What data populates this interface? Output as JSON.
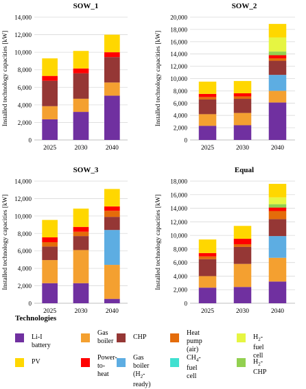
{
  "chart_data": [
    {
      "type": "bar",
      "stacked": true,
      "title": "SOW_1",
      "ylabel": "Installed technology capacities [kW]",
      "ylim": [
        0,
        14000
      ],
      "yticks": [
        "0",
        "2,000",
        "4,000",
        "6,000",
        "8,000",
        "10,000",
        "12,000",
        "14,000"
      ],
      "ytick_values": [
        0,
        2000,
        4000,
        6000,
        8000,
        10000,
        12000,
        14000
      ],
      "categories": [
        "2025",
        "2030",
        "2040"
      ],
      "series": [
        {
          "name": "Li-I battery",
          "color": "#7030A0",
          "values": [
            2350,
            3200,
            5050
          ]
        },
        {
          "name": "Gas boiler",
          "color": "#F4A030",
          "values": [
            1500,
            1500,
            1500
          ]
        },
        {
          "name": "CHP",
          "color": "#953735",
          "values": [
            2900,
            2900,
            2900
          ]
        },
        {
          "name": "Heat pump (air)",
          "color": "#E46C0A",
          "values": [
            0,
            0,
            0
          ]
        },
        {
          "name": "Power-to-heat",
          "color": "#FF0000",
          "values": [
            550,
            550,
            550
          ]
        },
        {
          "name": "PV",
          "color": "#FFD700",
          "values": [
            2000,
            2000,
            2000
          ]
        }
      ]
    },
    {
      "type": "bar",
      "stacked": true,
      "title": "SOW_2",
      "ylabel": "Installed technology capacities [kW]",
      "ylim": [
        0,
        20000
      ],
      "yticks": [
        "0",
        "2,000",
        "4,000",
        "6,000",
        "8,000",
        "10,000",
        "12,000",
        "14,000",
        "16,000",
        "18,000",
        "20,000"
      ],
      "ytick_values": [
        0,
        2000,
        4000,
        6000,
        8000,
        10000,
        12000,
        14000,
        16000,
        18000,
        20000
      ],
      "categories": [
        "2025",
        "2030",
        "2040"
      ],
      "series": [
        {
          "name": "Li-I battery",
          "color": "#7030A0",
          "values": [
            2300,
            2400,
            6100
          ]
        },
        {
          "name": "Gas boiler",
          "color": "#F4A030",
          "values": [
            1900,
            2000,
            1900
          ]
        },
        {
          "name": "Gas boiler (H2-ready)",
          "color": "#5DADE2",
          "values": [
            0,
            0,
            2600
          ]
        },
        {
          "name": "CHP",
          "color": "#953735",
          "values": [
            2400,
            2300,
            2300
          ]
        },
        {
          "name": "Heat pump (air)",
          "color": "#E46C0A",
          "values": [
            400,
            400,
            400
          ]
        },
        {
          "name": "Power-to-heat",
          "color": "#FF0000",
          "values": [
            500,
            500,
            500
          ]
        },
        {
          "name": "H2-CHP",
          "color": "#92D050",
          "values": [
            0,
            0,
            600
          ]
        },
        {
          "name": "H2-fuel cell",
          "color": "#E6F542",
          "values": [
            0,
            0,
            2300
          ]
        },
        {
          "name": "PV",
          "color": "#FFD700",
          "values": [
            2000,
            2000,
            2200
          ]
        }
      ]
    },
    {
      "type": "bar",
      "stacked": true,
      "title": "SOW_3",
      "ylabel": "Installed technology capacities [kW]",
      "ylim": [
        0,
        14000
      ],
      "yticks": [
        "0",
        "2,000",
        "4,000",
        "6,000",
        "8,000",
        "10,000",
        "12,000",
        "14,000"
      ],
      "ytick_values": [
        0,
        2000,
        4000,
        6000,
        8000,
        10000,
        12000,
        14000
      ],
      "categories": [
        "2025",
        "2030",
        "2040"
      ],
      "series": [
        {
          "name": "Li-I battery",
          "color": "#7030A0",
          "values": [
            2300,
            2300,
            500
          ]
        },
        {
          "name": "Gas boiler",
          "color": "#F4A030",
          "values": [
            2650,
            3800,
            3900
          ]
        },
        {
          "name": "Gas boiler (H2-ready)",
          "color": "#5DADE2",
          "values": [
            0,
            0,
            4000
          ]
        },
        {
          "name": "CHP",
          "color": "#953735",
          "values": [
            1550,
            1600,
            1500
          ]
        },
        {
          "name": "Heat pump (air)",
          "color": "#E46C0A",
          "values": [
            500,
            500,
            700
          ]
        },
        {
          "name": "Power-to-heat",
          "color": "#FF0000",
          "values": [
            550,
            550,
            500
          ]
        },
        {
          "name": "PV",
          "color": "#FFD700",
          "values": [
            2000,
            2100,
            2000
          ]
        }
      ]
    },
    {
      "type": "bar",
      "stacked": true,
      "title": "Equal",
      "ylabel": "Installed technology capacities [kW]",
      "ylim": [
        0,
        18000
      ],
      "yticks": [
        "0",
        "2,000",
        "4,000",
        "6,000",
        "8,000",
        "10,000",
        "12,000",
        "14,000",
        "16,000",
        "18,000"
      ],
      "ytick_values": [
        0,
        2000,
        4000,
        6000,
        8000,
        10000,
        12000,
        14000,
        16000,
        18000
      ],
      "categories": [
        "2025",
        "2030",
        "2040"
      ],
      "series": [
        {
          "name": "Li-I battery",
          "color": "#7030A0",
          "values": [
            2300,
            2400,
            3200
          ]
        },
        {
          "name": "Gas boiler",
          "color": "#F4A030",
          "values": [
            1700,
            3400,
            3500
          ]
        },
        {
          "name": "Gas boiler (H2-ready)",
          "color": "#5DADE2",
          "values": [
            0,
            0,
            3200
          ]
        },
        {
          "name": "CHP",
          "color": "#953735",
          "values": [
            2500,
            2500,
            2500
          ]
        },
        {
          "name": "Heat pump (air)",
          "color": "#E46C0A",
          "values": [
            400,
            400,
            1200
          ]
        },
        {
          "name": "Power-to-heat",
          "color": "#FF0000",
          "values": [
            500,
            800,
            500
          ]
        },
        {
          "name": "H2-CHP",
          "color": "#92D050",
          "values": [
            0,
            0,
            500
          ]
        },
        {
          "name": "CH4-fuel cell",
          "color": "#40E0D0",
          "values": [
            0,
            0,
            0
          ]
        },
        {
          "name": "H2-fuel cell",
          "color": "#E6F542",
          "values": [
            0,
            0,
            1000
          ]
        },
        {
          "name": "PV",
          "color": "#FFD700",
          "values": [
            2000,
            1900,
            2000
          ]
        }
      ]
    }
  ],
  "legend": {
    "title": "Technologies",
    "items": [
      {
        "name": "li-i-battery",
        "label": "Li-I battery",
        "color": "#7030A0"
      },
      {
        "name": "gas-boiler",
        "label": "Gas\nboiler",
        "color": "#F4A030"
      },
      {
        "name": "chp",
        "label": "CHP",
        "color": "#953735"
      },
      {
        "name": "heat-pump-air",
        "label": "Heat pump\n(air)",
        "color": "#E46C0A"
      },
      {
        "name": "h2-fuel-cell",
        "label": "H2-fuel cell",
        "color": "#E6F542"
      },
      {
        "name": "pv",
        "label": "PV",
        "color": "#FFD700"
      },
      {
        "name": "power-to-heat",
        "label": "Power-to-\nheat",
        "color": "#FF0000"
      },
      {
        "name": "gas-boiler-h2-ready",
        "label": "Gas boiler\n(H2-ready)",
        "color": "#5DADE2"
      },
      {
        "name": "ch4-fuel-cell",
        "label": "CH4-fuel\ncell",
        "color": "#40E0D0"
      },
      {
        "name": "h2-chp",
        "label": "H2-CHP",
        "color": "#92D050"
      }
    ]
  }
}
